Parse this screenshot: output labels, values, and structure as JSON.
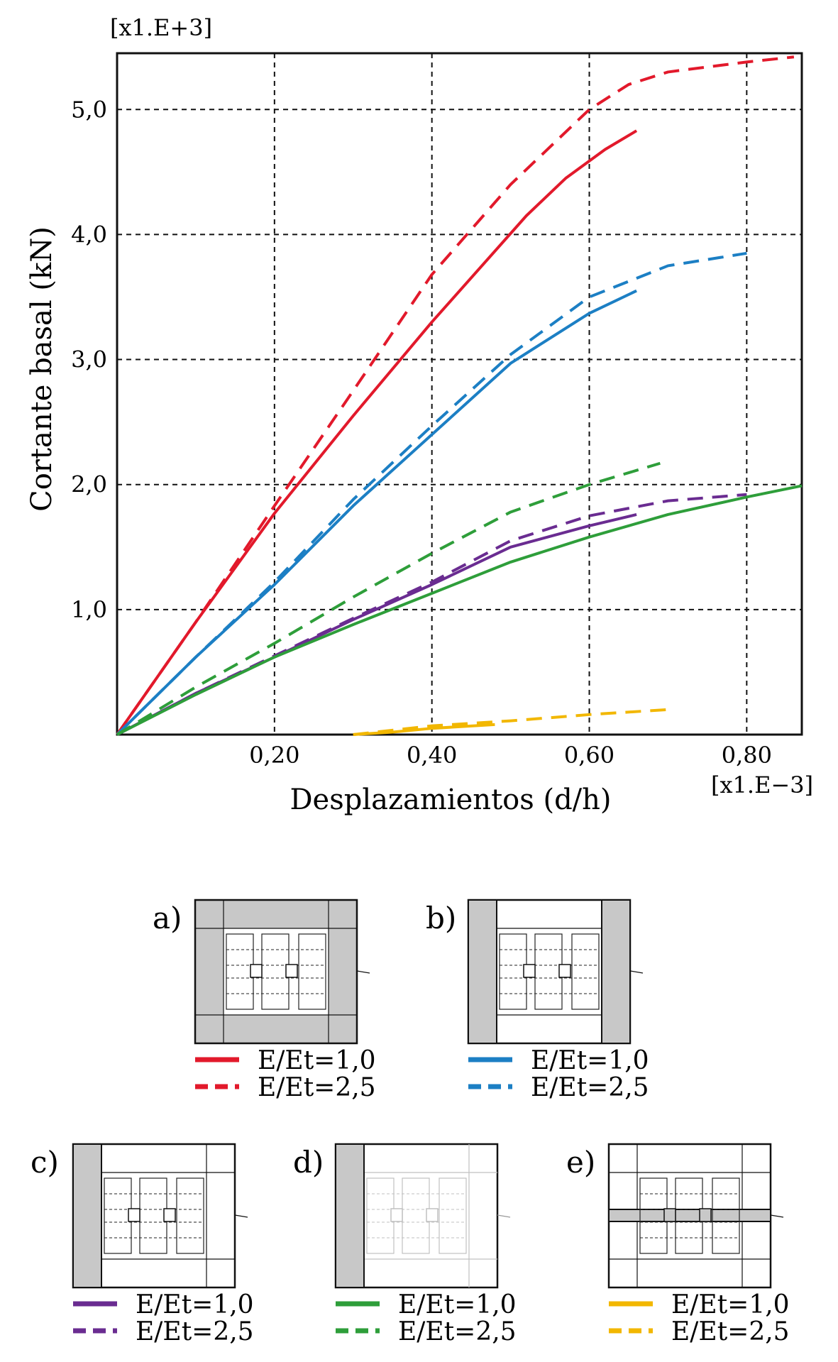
{
  "chart_data": {
    "type": "line",
    "xlabel": "Desplazamientos (d/h)",
    "ylabel": "Cortante basal (kN)",
    "x_multiplier_label": "[x1.E−3]",
    "y_multiplier_label": "[x1.E+3]",
    "xlim": [
      0,
      0.87
    ],
    "ylim": [
      0,
      5.45
    ],
    "x_ticks": [
      0.2,
      0.4,
      0.6,
      0.8
    ],
    "x_tick_labels": [
      "0,20",
      "0,40",
      "0,60",
      "0,80"
    ],
    "y_ticks": [
      1.0,
      2.0,
      3.0,
      4.0,
      5.0
    ],
    "y_tick_labels": [
      "1,0",
      "2,0",
      "3,0",
      "4,0",
      "5,0"
    ],
    "grid": true,
    "series": [
      {
        "case": "a",
        "name": "E/Et=1,0",
        "color": "#e2192b",
        "dashed": false,
        "x": [
          0,
          0.1,
          0.2,
          0.3,
          0.4,
          0.52,
          0.57,
          0.62,
          0.66
        ],
        "y": [
          0,
          0.9,
          1.77,
          2.55,
          3.3,
          4.15,
          4.45,
          4.68,
          4.83
        ]
      },
      {
        "case": "a",
        "name": "E/Et=2,5",
        "color": "#e2192b",
        "dashed": true,
        "x": [
          0,
          0.1,
          0.2,
          0.3,
          0.4,
          0.5,
          0.6,
          0.65,
          0.7,
          0.8,
          0.86
        ],
        "y": [
          0,
          0.9,
          1.83,
          2.75,
          3.68,
          4.4,
          5.0,
          5.2,
          5.3,
          5.38,
          5.42
        ]
      },
      {
        "case": "b",
        "name": "E/Et=1,0",
        "color": "#1c7fc4",
        "dashed": false,
        "x": [
          0,
          0.1,
          0.2,
          0.3,
          0.4,
          0.5,
          0.6,
          0.66
        ],
        "y": [
          0,
          0.62,
          1.2,
          1.83,
          2.4,
          2.97,
          3.37,
          3.55
        ]
      },
      {
        "case": "b",
        "name": "E/Et=2,5",
        "color": "#1c7fc4",
        "dashed": true,
        "x": [
          0,
          0.1,
          0.2,
          0.3,
          0.4,
          0.5,
          0.6,
          0.7,
          0.8
        ],
        "y": [
          0,
          0.62,
          1.22,
          1.88,
          2.47,
          3.04,
          3.5,
          3.75,
          3.85
        ]
      },
      {
        "case": "c",
        "name": "E/Et=1,0",
        "color": "#6a2c91",
        "dashed": false,
        "x": [
          0,
          0.1,
          0.2,
          0.3,
          0.4,
          0.5,
          0.6,
          0.66
        ],
        "y": [
          0,
          0.33,
          0.62,
          0.92,
          1.2,
          1.5,
          1.67,
          1.76
        ]
      },
      {
        "case": "c",
        "name": "E/Et=2,5",
        "color": "#6a2c91",
        "dashed": true,
        "x": [
          0,
          0.1,
          0.2,
          0.3,
          0.4,
          0.5,
          0.6,
          0.7,
          0.8
        ],
        "y": [
          0,
          0.33,
          0.63,
          0.93,
          1.22,
          1.55,
          1.75,
          1.87,
          1.92
        ]
      },
      {
        "case": "d",
        "name": "E/Et=1,0",
        "color": "#2e9e3a",
        "dashed": false,
        "x": [
          0,
          0.1,
          0.2,
          0.3,
          0.4,
          0.5,
          0.6,
          0.7,
          0.8,
          0.87
        ],
        "y": [
          0,
          0.32,
          0.62,
          0.88,
          1.13,
          1.38,
          1.58,
          1.76,
          1.9,
          1.99
        ]
      },
      {
        "case": "d",
        "name": "E/Et=2,5",
        "color": "#2e9e3a",
        "dashed": true,
        "x": [
          0,
          0.1,
          0.2,
          0.3,
          0.4,
          0.5,
          0.6,
          0.69
        ],
        "y": [
          0,
          0.38,
          0.73,
          1.1,
          1.45,
          1.78,
          2.0,
          2.17
        ]
      },
      {
        "case": "e",
        "name": "E/Et=1,0",
        "color": "#f2b700",
        "dashed": false,
        "x": [
          0.3,
          0.35,
          0.4,
          0.48
        ],
        "y": [
          0.0,
          0.02,
          0.05,
          0.08
        ]
      },
      {
        "case": "e",
        "name": "E/Et=2,5",
        "color": "#f2b700",
        "dashed": true,
        "x": [
          0.3,
          0.4,
          0.5,
          0.6,
          0.7
        ],
        "y": [
          0.0,
          0.07,
          0.11,
          0.16,
          0.2
        ]
      }
    ],
    "legend_panels": [
      {
        "tag": "a)",
        "solid_label": "E/Et=1,0",
        "dashed_label": "E/Et=2,5",
        "color": "#e2192b"
      },
      {
        "tag": "b)",
        "solid_label": "E/Et=1,0",
        "dashed_label": "E/Et=2,5",
        "color": "#1c7fc4"
      },
      {
        "tag": "c)",
        "solid_label": "E/Et=1,0",
        "dashed_label": "E/Et=2,5",
        "color": "#6a2c91"
      },
      {
        "tag": "d)",
        "solid_label": "E/Et=1,0",
        "dashed_label": "E/Et=2,5",
        "color": "#2e9e3a"
      },
      {
        "tag": "e)",
        "solid_label": "E/Et=1,0",
        "dashed_label": "E/Et=2,5",
        "color": "#f2b700"
      }
    ]
  }
}
